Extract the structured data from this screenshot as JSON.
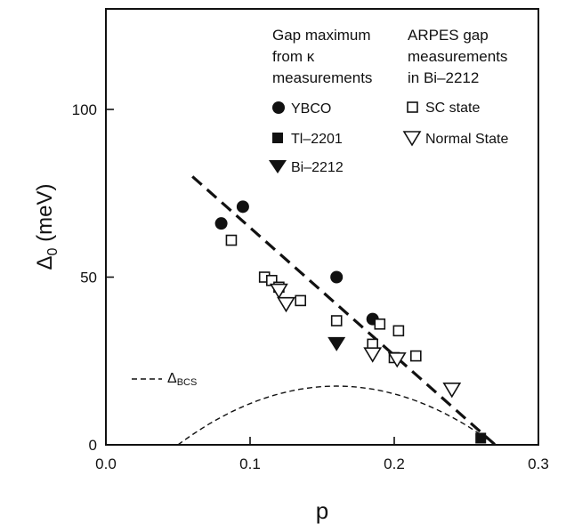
{
  "chart_data": {
    "type": "scatter",
    "xlabel": "p",
    "ylabel": "Δ",
    "ylabel_sub": "0",
    "ylabel_unit": " (meV)",
    "xlim": [
      0.0,
      0.3
    ],
    "ylim": [
      0,
      130
    ],
    "x_ticks": [
      0.0,
      0.1,
      0.2,
      0.3
    ],
    "x_tick_labels": [
      "0.0",
      "0.1",
      "0.2",
      "0.3"
    ],
    "y_ticks": [
      0,
      50,
      100
    ],
    "y_tick_labels": [
      "0",
      "50",
      "100"
    ],
    "legend_left": {
      "heading": [
        "Gap maximum",
        "from κ",
        "measurements"
      ]
    },
    "legend_right": {
      "heading": [
        "ARPES gap",
        "measurements",
        "in Bi–2212"
      ]
    },
    "series": [
      {
        "name": "YBCO",
        "marker": "circle",
        "color": "#111111",
        "points": [
          [
            0.08,
            66
          ],
          [
            0.095,
            71
          ],
          [
            0.16,
            50
          ],
          [
            0.185,
            37.5
          ]
        ]
      },
      {
        "name": "Tl–2201",
        "marker": "filled-square",
        "color": "#111111",
        "points": [
          [
            0.26,
            2
          ]
        ]
      },
      {
        "name": "Bi–2212",
        "marker": "filled-triangle-down",
        "color": "#111111",
        "points": [
          [
            0.16,
            30
          ]
        ]
      },
      {
        "name": "SC state",
        "marker": "open-square",
        "color": "#111111",
        "points": [
          [
            0.087,
            61
          ],
          [
            0.11,
            50
          ],
          [
            0.115,
            49
          ],
          [
            0.12,
            47
          ],
          [
            0.135,
            43
          ],
          [
            0.16,
            37
          ],
          [
            0.185,
            30
          ],
          [
            0.19,
            36
          ],
          [
            0.2,
            26
          ],
          [
            0.203,
            34
          ],
          [
            0.215,
            26.5
          ]
        ]
      },
      {
        "name": "Normal State",
        "marker": "open-triangle-down",
        "color": "#111111",
        "points": [
          [
            0.12,
            46
          ],
          [
            0.125,
            42
          ],
          [
            0.185,
            27
          ],
          [
            0.202,
            25.5
          ],
          [
            0.24,
            16.5
          ]
        ]
      }
    ],
    "fit_line": {
      "style": "dashed-thick",
      "points": [
        [
          0.06,
          80
        ],
        [
          0.27,
          0
        ]
      ]
    },
    "bcs_curve": {
      "name": "Δ",
      "name_sub": "BCS",
      "style": "dashed-thin",
      "x_range": [
        0.05,
        0.27
      ],
      "peak_x": 0.16,
      "peak_y": 17.5
    },
    "grid": false,
    "legend_placement": "top-right"
  }
}
